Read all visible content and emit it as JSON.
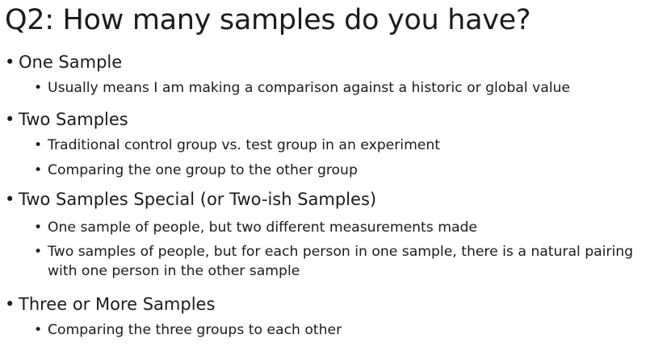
{
  "slide": {
    "title": "Q2: How many samples do you have?",
    "bullet_char": "•",
    "sections": [
      {
        "heading": "One Sample",
        "items": [
          "Usually means I am making a comparison against a historic or global value"
        ]
      },
      {
        "heading": "Two Samples",
        "items": [
          "Traditional control group vs. test group in an experiment",
          "Comparing the one group to the other group"
        ]
      },
      {
        "heading": "Two Samples Special (or Two-ish Samples)",
        "items": [
          "One sample of people, but two different measurements made",
          "Two samples of people, but for each person in one sample, there is a natural pairing with one person in the other sample"
        ]
      },
      {
        "heading": "Three or More Samples",
        "items": [
          "Comparing the three groups to each other"
        ]
      }
    ]
  }
}
